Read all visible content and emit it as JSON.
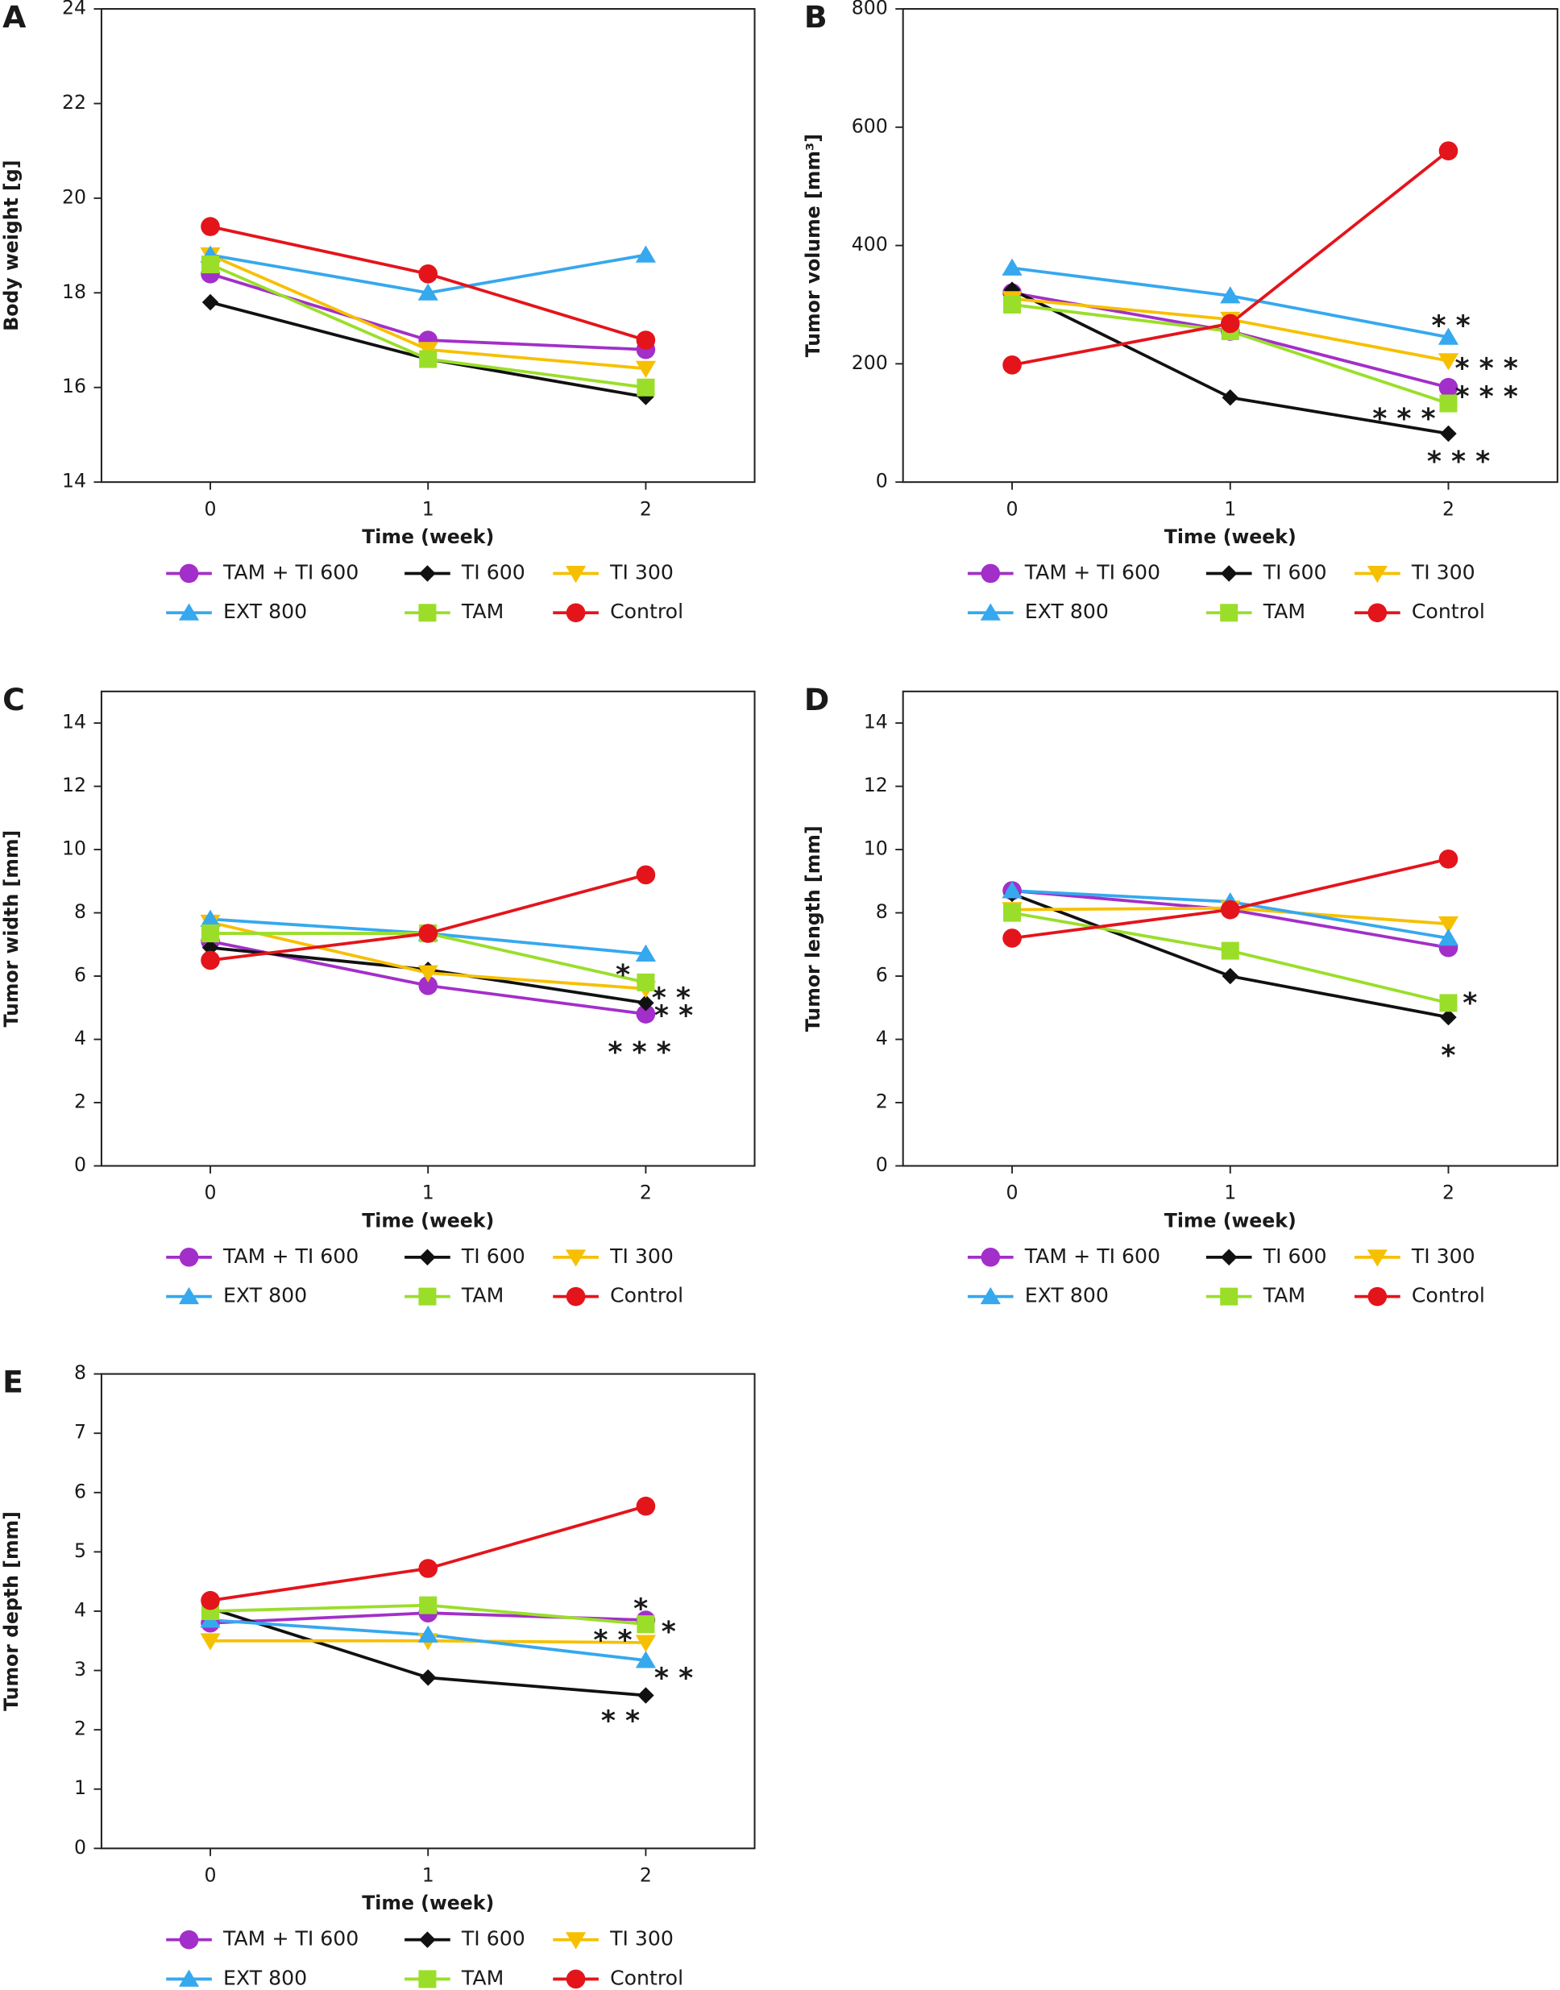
{
  "chart_data": [
    {
      "type": "line",
      "panel": "A",
      "ylabel": "Body weight [g]",
      "xlabel": "Time (week)",
      "x": [
        0,
        1,
        2
      ],
      "xlim": [
        -0.5,
        2.5
      ],
      "xticks": [
        0,
        1,
        2
      ],
      "ylim": [
        14,
        24
      ],
      "yticks": [
        14,
        16,
        18,
        20,
        22,
        24
      ],
      "series": [
        {
          "name": "TAM + TI 600",
          "color": "#a22fc9",
          "marker": "circle",
          "values": [
            18.4,
            17.0,
            16.8
          ]
        },
        {
          "name": "TI 600",
          "color": "#111111",
          "marker": "diamond",
          "values": [
            17.8,
            16.6,
            15.8
          ]
        },
        {
          "name": "TI 300",
          "color": "#f6c000",
          "marker": "triangle-down",
          "values": [
            18.8,
            16.8,
            16.4
          ]
        },
        {
          "name": "EXT 800",
          "color": "#36a8ee",
          "marker": "triangle-up",
          "values": [
            18.8,
            18.0,
            18.8
          ]
        },
        {
          "name": "TAM",
          "color": "#9ade2a",
          "marker": "square",
          "values": [
            18.6,
            16.6,
            16.0
          ]
        },
        {
          "name": "Control",
          "color": "#e4141b",
          "marker": "circle",
          "values": [
            19.4,
            18.4,
            17.0
          ]
        }
      ]
    },
    {
      "type": "line",
      "panel": "B",
      "ylabel": "Tumor volume [mm³]",
      "xlabel": "Time (week)",
      "x": [
        0,
        1,
        2
      ],
      "xlim": [
        -0.5,
        2.5
      ],
      "xticks": [
        0,
        1,
        2
      ],
      "ylim": [
        0,
        800
      ],
      "yticks": [
        0,
        200,
        400,
        600,
        800
      ],
      "series": [
        {
          "name": "TAM + TI 600",
          "color": "#a22fc9",
          "marker": "circle",
          "values": [
            320,
            255,
            160
          ],
          "annotation": "* * *"
        },
        {
          "name": "TI 600",
          "color": "#111111",
          "marker": "diamond",
          "values": [
            325,
            143,
            82
          ],
          "annotation": "* * *"
        },
        {
          "name": "TI 300",
          "color": "#f6c000",
          "marker": "triangle-down",
          "values": [
            310,
            275,
            205
          ],
          "annotation": "* * *"
        },
        {
          "name": "EXT 800",
          "color": "#36a8ee",
          "marker": "triangle-up",
          "values": [
            362,
            315,
            245
          ],
          "annotation": "* *"
        },
        {
          "name": "TAM",
          "color": "#9ade2a",
          "marker": "square",
          "values": [
            300,
            255,
            133
          ],
          "annotation": "* * *"
        },
        {
          "name": "Control",
          "color": "#e4141b",
          "marker": "circle",
          "values": [
            198,
            268,
            560
          ]
        }
      ]
    },
    {
      "type": "line",
      "panel": "C",
      "ylabel": "Tumor width [mm]",
      "xlabel": "Time (week)",
      "x": [
        0,
        1,
        2
      ],
      "xlim": [
        -0.5,
        2.5
      ],
      "xticks": [
        0,
        1,
        2
      ],
      "ylim": [
        0,
        15
      ],
      "yticks": [
        0,
        2,
        4,
        6,
        8,
        10,
        12,
        14
      ],
      "series": [
        {
          "name": "TAM + TI 600",
          "color": "#a22fc9",
          "marker": "circle",
          "values": [
            7.1,
            5.7,
            4.8
          ],
          "annotation": "* * *"
        },
        {
          "name": "TI 600",
          "color": "#111111",
          "marker": "diamond",
          "values": [
            6.9,
            6.2,
            5.15
          ],
          "annotation": "* *"
        },
        {
          "name": "TI 300",
          "color": "#f6c000",
          "marker": "triangle-down",
          "values": [
            7.7,
            6.1,
            5.6
          ],
          "annotation": "* *"
        },
        {
          "name": "EXT 800",
          "color": "#36a8ee",
          "marker": "triangle-up",
          "values": [
            7.8,
            7.35,
            6.7
          ]
        },
        {
          "name": "TAM",
          "color": "#9ade2a",
          "marker": "square",
          "values": [
            7.35,
            7.35,
            5.8
          ],
          "annotation": "*"
        },
        {
          "name": "Control",
          "color": "#e4141b",
          "marker": "circle",
          "values": [
            6.5,
            7.35,
            9.2
          ]
        }
      ]
    },
    {
      "type": "line",
      "panel": "D",
      "ylabel": "Tumor length [mm]",
      "xlabel": "Time (week)",
      "x": [
        0,
        1,
        2
      ],
      "xlim": [
        -0.5,
        2.5
      ],
      "xticks": [
        0,
        1,
        2
      ],
      "ylim": [
        0,
        15
      ],
      "yticks": [
        0,
        2,
        4,
        6,
        8,
        10,
        12,
        14
      ],
      "series": [
        {
          "name": "TAM + TI 600",
          "color": "#a22fc9",
          "marker": "circle",
          "values": [
            8.7,
            8.1,
            6.9
          ]
        },
        {
          "name": "TI 600",
          "color": "#111111",
          "marker": "diamond",
          "values": [
            8.6,
            6.0,
            4.7
          ],
          "annotation": "*"
        },
        {
          "name": "TI 300",
          "color": "#f6c000",
          "marker": "triangle-down",
          "values": [
            8.1,
            8.15,
            7.65
          ]
        },
        {
          "name": "EXT 800",
          "color": "#36a8ee",
          "marker": "triangle-up",
          "values": [
            8.7,
            8.35,
            7.2
          ]
        },
        {
          "name": "TAM",
          "color": "#9ade2a",
          "marker": "square",
          "values": [
            8.0,
            6.8,
            5.15
          ],
          "annotation": "*"
        },
        {
          "name": "Control",
          "color": "#e4141b",
          "marker": "circle",
          "values": [
            7.2,
            8.1,
            9.7
          ]
        }
      ]
    },
    {
      "type": "line",
      "panel": "E",
      "ylabel": "Tumor depth [mm]",
      "xlabel": "Time (week)",
      "x": [
        0,
        1,
        2
      ],
      "xlim": [
        -0.5,
        2.5
      ],
      "xticks": [
        0,
        1,
        2
      ],
      "ylim": [
        0,
        8
      ],
      "yticks": [
        0,
        1,
        2,
        3,
        4,
        5,
        6,
        7,
        8
      ],
      "series": [
        {
          "name": "TAM + TI 600",
          "color": "#a22fc9",
          "marker": "circle",
          "values": [
            3.8,
            3.97,
            3.85
          ],
          "annotation": "*"
        },
        {
          "name": "TI 600",
          "color": "#111111",
          "marker": "diamond",
          "values": [
            4.05,
            2.88,
            2.58
          ],
          "annotation": "* *"
        },
        {
          "name": "TI 300",
          "color": "#f6c000",
          "marker": "triangle-down",
          "values": [
            3.5,
            3.5,
            3.47
          ],
          "annotation": "* *"
        },
        {
          "name": "EXT 800",
          "color": "#36a8ee",
          "marker": "triangle-up",
          "values": [
            3.85,
            3.6,
            3.17
          ],
          "annotation": "* *"
        },
        {
          "name": "TAM",
          "color": "#9ade2a",
          "marker": "square",
          "values": [
            4.0,
            4.1,
            3.78
          ],
          "annotation": "*"
        },
        {
          "name": "Control",
          "color": "#e4141b",
          "marker": "circle",
          "values": [
            4.18,
            4.72,
            5.77
          ]
        }
      ]
    }
  ]
}
